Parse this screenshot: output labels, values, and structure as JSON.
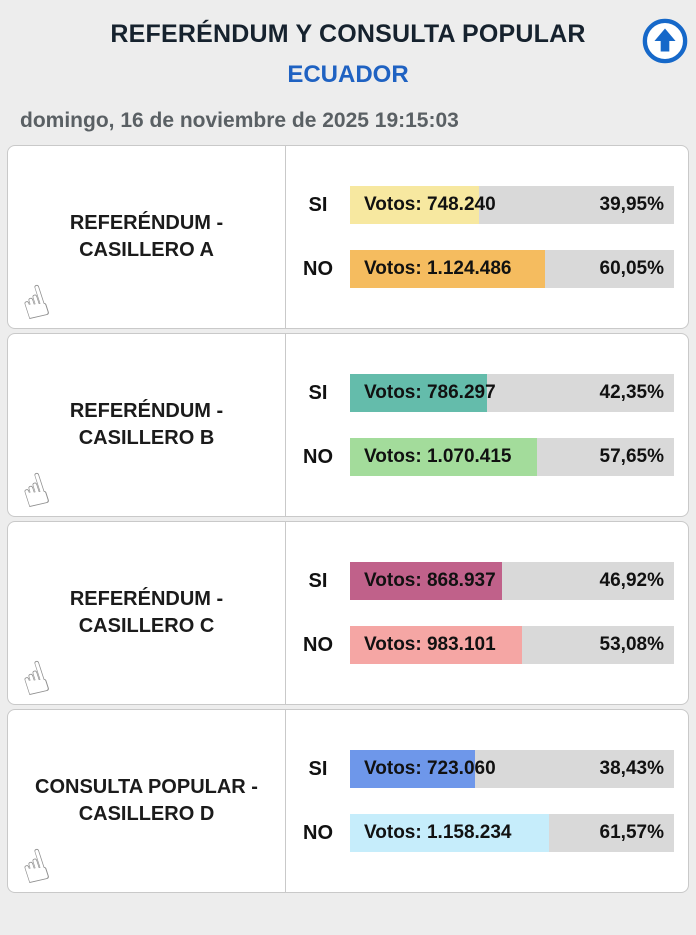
{
  "header": {
    "title": "REFERÉNDUM Y CONSULTA POPULAR",
    "subtitle": "ECUADOR",
    "datetime": "domingo, 16 de noviembre de 2025 19:15:03"
  },
  "icons": {
    "scroll_top": "up-arrow-circle-icon",
    "tap_hint": "hand-pointer-icon",
    "hand_glyph": "☝"
  },
  "labels": {
    "si": "SI",
    "no": "NO"
  },
  "colors": {
    "title": "#16222e",
    "subtitle": "#1f62c2",
    "datetime": "#5a6064",
    "header_bg": "#ededed",
    "card_bg": "#ffffff",
    "card_border": "#c9c9c9",
    "bar_track": "#d9d9d9",
    "accent_blue": "#1668c9"
  },
  "sections": [
    {
      "title_line1": "REFERÉNDUM -",
      "title_line2": "CASILLERO A",
      "si": {
        "votes_label": "Votos: 748.240",
        "pct_label": "39,95%",
        "pct": 39.95,
        "color": "#f7e8a0"
      },
      "no": {
        "votes_label": "Votos: 1.124.486",
        "pct_label": "60,05%",
        "pct": 60.05,
        "color": "#f5bc5f"
      }
    },
    {
      "title_line1": "REFERÉNDUM -",
      "title_line2": "CASILLERO B",
      "si": {
        "votes_label": "Votos: 786.297",
        "pct_label": "42,35%",
        "pct": 42.35,
        "color": "#64bcab"
      },
      "no": {
        "votes_label": "Votos: 1.070.415",
        "pct_label": "57,65%",
        "pct": 57.65,
        "color": "#a3dc9b"
      }
    },
    {
      "title_line1": "REFERÉNDUM -",
      "title_line2": "CASILLERO C",
      "si": {
        "votes_label": "Votos: 868.937",
        "pct_label": "46,92%",
        "pct": 46.92,
        "color": "#c0618a"
      },
      "no": {
        "votes_label": "Votos: 983.101",
        "pct_label": "53,08%",
        "pct": 53.08,
        "color": "#f5a6a4"
      }
    },
    {
      "title_line1": "CONSULTA POPULAR -",
      "title_line2": "CASILLERO D",
      "si": {
        "votes_label": "Votos: 723.060",
        "pct_label": "38,43%",
        "pct": 38.43,
        "color": "#6e97ea"
      },
      "no": {
        "votes_label": "Votos: 1.158.234",
        "pct_label": "61,57%",
        "pct": 61.57,
        "color": "#c6edfb"
      }
    }
  ],
  "chart_data": {
    "type": "bar",
    "title": "REFERÉNDUM Y CONSULTA POPULAR — ECUADOR",
    "timestamp": "domingo, 16 de noviembre de 2025 19:15:03",
    "xlim": [
      0,
      100
    ],
    "groups": [
      {
        "name": "REFERÉNDUM - CASILLERO A",
        "options": [
          {
            "label": "SI",
            "votes": 748240,
            "percent": 39.95
          },
          {
            "label": "NO",
            "votes": 1124486,
            "percent": 60.05
          }
        ]
      },
      {
        "name": "REFERÉNDUM - CASILLERO B",
        "options": [
          {
            "label": "SI",
            "votes": 786297,
            "percent": 42.35
          },
          {
            "label": "NO",
            "votes": 1070415,
            "percent": 57.65
          }
        ]
      },
      {
        "name": "REFERÉNDUM - CASILLERO C",
        "options": [
          {
            "label": "SI",
            "votes": 868937,
            "percent": 46.92
          },
          {
            "label": "NO",
            "votes": 983101,
            "percent": 53.08
          }
        ]
      },
      {
        "name": "CONSULTA POPULAR - CASILLERO D",
        "options": [
          {
            "label": "SI",
            "votes": 723060,
            "percent": 38.43
          },
          {
            "label": "NO",
            "votes": 1158234,
            "percent": 61.57
          }
        ]
      }
    ]
  }
}
